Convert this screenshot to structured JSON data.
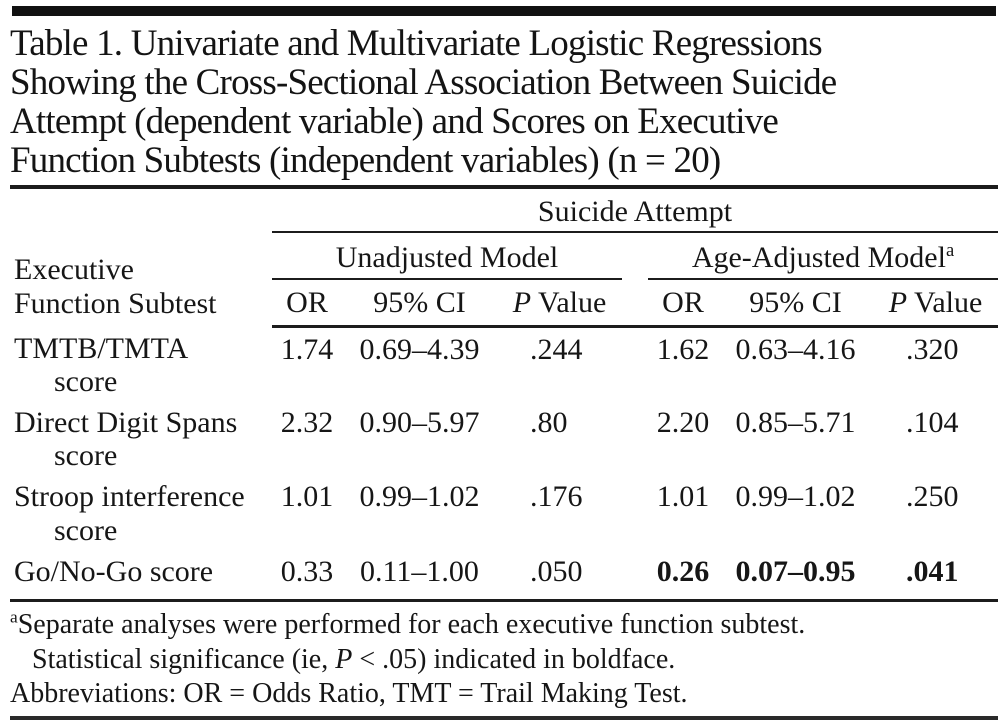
{
  "title": {
    "lines": [
      "Table 1. Univariate and Multivariate Logistic Regressions",
      "Showing the Cross-Sectional Association Between Suicide",
      "Attempt (dependent variable) and Scores on Executive",
      "Function Subtests (independent variables) (n = 20)"
    ]
  },
  "table": {
    "spanner": "Suicide Attempt",
    "stub_header": {
      "line1": "Executive",
      "line2": "Function Subtest"
    },
    "group_headers": [
      {
        "label": "Unadjusted Model",
        "sup": ""
      },
      {
        "label": "Age-Adjusted Model",
        "sup": "a"
      }
    ],
    "col_headers": {
      "or": "OR",
      "ci": "95% CI",
      "p_italic": "P",
      "p_rest": " Value"
    },
    "rows": [
      {
        "label1": "TMTB/TMTA",
        "label2": "score",
        "u_or": "1.74",
        "u_ci": "0.69–4.39",
        "u_p": ".244",
        "a_or": "1.62",
        "a_ci": "0.63–4.16",
        "a_p": ".320",
        "a_bold": false
      },
      {
        "label1": "Direct Digit Spans",
        "label2": "score",
        "u_or": "2.32",
        "u_ci": "0.90–5.97",
        "u_p": ".80",
        "a_or": "2.20",
        "a_ci": "0.85–5.71",
        "a_p": ".104",
        "a_bold": false
      },
      {
        "label1": "Stroop interference",
        "label2": "score",
        "u_or": "1.01",
        "u_ci": "0.99–1.02",
        "u_p": ".176",
        "a_or": "1.01",
        "a_ci": "0.99–1.02",
        "a_p": ".250",
        "a_bold": false
      },
      {
        "label1": "Go/No-Go score",
        "label2": "",
        "u_or": "0.33",
        "u_ci": "0.11–1.00",
        "u_p": ".050",
        "a_or": "0.26",
        "a_ci": "0.07–0.95",
        "a_p": ".041",
        "a_bold": true
      }
    ]
  },
  "footnotes": {
    "a_sup": "a",
    "a_text": "Separate analyses were performed for each executive function subtest.",
    "sig_pre": "Statistical significance (ie, ",
    "sig_p": "P",
    "sig_post": " < .05) indicated in boldface.",
    "abbreviations": "Abbreviations: OR = Odds Ratio, TMT = Trail Making Test."
  }
}
